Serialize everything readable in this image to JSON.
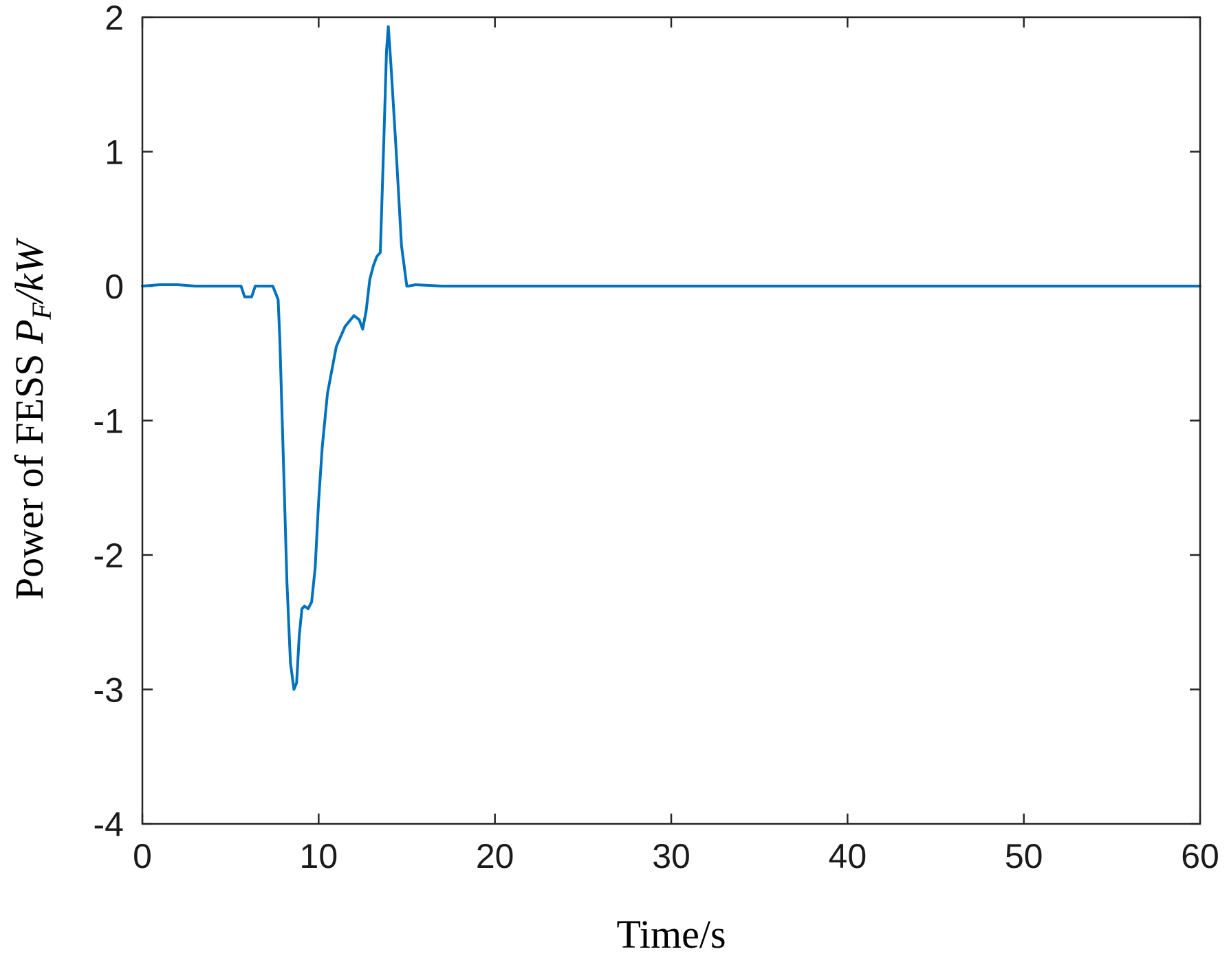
{
  "chart_data": {
    "type": "line",
    "title": "",
    "xlabel": "Time/s",
    "ylabel": {
      "prefix": "Power of FESS ",
      "symbol": "P",
      "subscript": "F",
      "unit": "/kW"
    },
    "xlim": [
      0,
      60
    ],
    "ylim": [
      -4,
      2
    ],
    "xticks": [
      0,
      10,
      20,
      30,
      40,
      50,
      60
    ],
    "yticks": [
      -4,
      -3,
      -2,
      -1,
      0,
      1,
      2
    ],
    "xtick_labels": [
      "0",
      "10",
      "20",
      "30",
      "40",
      "50",
      "60"
    ],
    "ytick_labels": [
      "-4",
      "-3",
      "-2",
      "-1",
      "0",
      "1",
      "2"
    ],
    "grid": false,
    "line_color": "#0072BD",
    "series": [
      {
        "x": [
          0,
          1,
          2,
          3,
          4,
          5,
          5.6,
          5.8,
          6.0,
          6.2,
          6.4,
          6.6,
          6.8,
          7.0,
          7.4,
          7.7,
          7.8,
          8.0,
          8.2,
          8.4,
          8.6,
          8.75,
          8.9,
          9.05,
          9.2,
          9.4,
          9.6,
          9.8,
          10.0,
          10.2,
          10.5,
          11.0,
          11.5,
          12.0,
          12.3,
          12.5,
          12.7,
          12.9,
          13.1,
          13.3,
          13.5,
          13.7,
          13.85,
          13.95,
          14.1,
          14.4,
          14.7,
          15.0,
          15.1,
          15.5,
          17.0,
          20,
          25,
          30,
          35,
          40,
          45,
          50,
          55,
          60
        ],
        "y": [
          0,
          0.01,
          0.01,
          0,
          0,
          0,
          0,
          -0.08,
          -0.08,
          -0.08,
          0,
          0,
          0,
          0,
          0,
          -0.1,
          -0.4,
          -1.3,
          -2.2,
          -2.8,
          -3.0,
          -2.95,
          -2.6,
          -2.4,
          -2.38,
          -2.4,
          -2.35,
          -2.1,
          -1.6,
          -1.2,
          -0.8,
          -0.45,
          -0.3,
          -0.22,
          -0.25,
          -0.32,
          -0.18,
          0.05,
          0.15,
          0.22,
          0.25,
          1.1,
          1.75,
          1.93,
          1.65,
          1.0,
          0.3,
          0,
          0,
          0.01,
          0,
          0,
          0,
          0,
          0,
          0,
          0,
          0,
          0,
          0
        ]
      }
    ]
  }
}
